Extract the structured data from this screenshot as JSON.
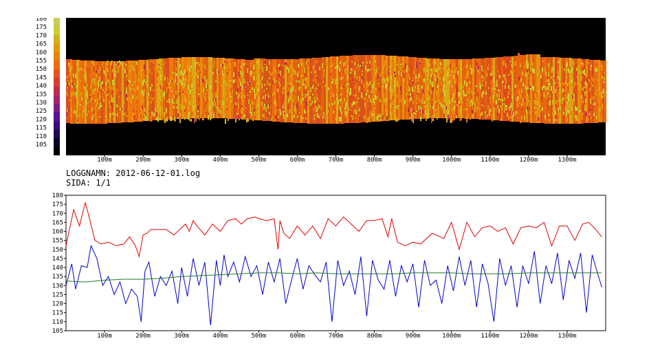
{
  "log": {
    "name_line": "LOGGNAMN: 2012-06-12-01.log",
    "page_line": "SIDA: 1/1"
  },
  "chart_data": [
    {
      "type": "heatmap",
      "title": "",
      "x_tick_labels": [
        "100m",
        "200m",
        "300m",
        "400m",
        "500m",
        "600m",
        "700m",
        "800m",
        "900m",
        "1000m",
        "1100m",
        "1200m",
        "1300m"
      ],
      "x_tick_values": [
        100,
        200,
        300,
        400,
        500,
        600,
        700,
        800,
        900,
        1000,
        1100,
        1200,
        1300
      ],
      "xlim": [
        0,
        1400
      ],
      "colorbar": {
        "labels": [
          "180",
          "175",
          "170",
          "165",
          "160",
          "155",
          "150",
          "145",
          "140",
          "135",
          "130",
          "125",
          "120",
          "115",
          "110",
          "105"
        ],
        "values": [
          180,
          175,
          170,
          165,
          160,
          155,
          150,
          145,
          140,
          135,
          130,
          125,
          120,
          115,
          110,
          105
        ],
        "colors": [
          "#c8cc55",
          "#cccc33",
          "#d4b018",
          "#e09a08",
          "#e8820a",
          "#ec6a10",
          "#e85020",
          "#d83c2e",
          "#c02c48",
          "#a02470",
          "#801a8a",
          "#5a1090",
          "#380c7a",
          "#1c0858",
          "#08042c",
          "#000000"
        ]
      }
    },
    {
      "type": "line",
      "title": "",
      "xlim": [
        0,
        1400
      ],
      "ylim": [
        105,
        180
      ],
      "y_tick_labels": [
        "180",
        "175",
        "170",
        "165",
        "160",
        "155",
        "150",
        "145",
        "140",
        "135",
        "130",
        "125",
        "120",
        "115",
        "110",
        "105"
      ],
      "y_tick_values": [
        180,
        175,
        170,
        165,
        160,
        155,
        150,
        145,
        140,
        135,
        130,
        125,
        120,
        115,
        110,
        105
      ],
      "x_tick_labels": [
        "100m",
        "200m",
        "300m",
        "400m",
        "500m",
        "600m",
        "700m",
        "800m",
        "900m",
        "1000m",
        "1100m",
        "1200m",
        "1300m"
      ],
      "x_tick_values": [
        100,
        200,
        300,
        400,
        500,
        600,
        700,
        800,
        900,
        1000,
        1100,
        1200,
        1300
      ],
      "series": [
        {
          "color": "#dd0000",
          "x": [
            0,
            20,
            35,
            50,
            60,
            75,
            90,
            110,
            130,
            150,
            165,
            180,
            190,
            200,
            210,
            220,
            240,
            260,
            280,
            300,
            310,
            320,
            330,
            340,
            360,
            380,
            400,
            420,
            440,
            455,
            470,
            490,
            500,
            520,
            540,
            550,
            555,
            565,
            580,
            600,
            620,
            640,
            660,
            680,
            700,
            720,
            740,
            760,
            780,
            800,
            820,
            835,
            845,
            860,
            880,
            900,
            920,
            950,
            980,
            1000,
            1020,
            1040,
            1060,
            1080,
            1100,
            1120,
            1140,
            1160,
            1180,
            1200,
            1220,
            1240,
            1260,
            1280,
            1300,
            1320,
            1340,
            1355,
            1370,
            1390
          ],
          "y": [
            152,
            172,
            163,
            176,
            168,
            155,
            153,
            154,
            152,
            153,
            157,
            152,
            146,
            158,
            159,
            161,
            161,
            161,
            158,
            162,
            164,
            160,
            166,
            163,
            158,
            164,
            160,
            166,
            167,
            164,
            167,
            168,
            167,
            166,
            167,
            150,
            166,
            159,
            156,
            163,
            158,
            163,
            156,
            167,
            163,
            168,
            164,
            160,
            166,
            166,
            167,
            157,
            167,
            154,
            152,
            154,
            153,
            159,
            156,
            165,
            150,
            165,
            157,
            162,
            163,
            160,
            162,
            153,
            162,
            163,
            162,
            165,
            152,
            163,
            163,
            155,
            164,
            165,
            162,
            157
          ]
        },
        {
          "color": "#0000cc",
          "x": [
            0,
            15,
            25,
            40,
            55,
            65,
            80,
            95,
            110,
            125,
            140,
            155,
            170,
            185,
            195,
            205,
            215,
            230,
            245,
            260,
            275,
            290,
            300,
            315,
            330,
            345,
            360,
            375,
            390,
            400,
            410,
            420,
            435,
            450,
            465,
            480,
            495,
            510,
            525,
            540,
            555,
            570,
            585,
            600,
            615,
            630,
            645,
            660,
            675,
            690,
            705,
            720,
            735,
            750,
            765,
            780,
            795,
            810,
            825,
            840,
            855,
            870,
            885,
            900,
            915,
            930,
            945,
            960,
            975,
            990,
            1005,
            1020,
            1035,
            1050,
            1065,
            1080,
            1095,
            1110,
            1125,
            1140,
            1155,
            1170,
            1185,
            1200,
            1215,
            1230,
            1245,
            1260,
            1275,
            1290,
            1305,
            1320,
            1335,
            1350,
            1365,
            1380,
            1390
          ],
          "y": [
            130,
            142,
            128,
            141,
            140,
            152,
            145,
            130,
            135,
            125,
            132,
            120,
            128,
            124,
            110,
            138,
            143,
            124,
            135,
            130,
            138,
            120,
            140,
            124,
            145,
            130,
            143,
            108,
            144,
            130,
            147,
            135,
            143,
            132,
            146,
            135,
            141,
            125,
            143,
            132,
            145,
            120,
            133,
            145,
            128,
            141,
            136,
            132,
            143,
            110,
            144,
            130,
            138,
            125,
            146,
            113,
            144,
            133,
            128,
            144,
            124,
            141,
            132,
            142,
            118,
            144,
            130,
            133,
            120,
            141,
            127,
            146,
            130,
            144,
            118,
            142,
            131,
            110,
            145,
            130,
            141,
            118,
            141,
            131,
            149,
            120,
            141,
            131,
            148,
            122,
            144,
            134,
            148,
            115,
            147,
            136,
            129
          ]
        },
        {
          "color": "#227722",
          "x": [
            0,
            50,
            100,
            150,
            200,
            250,
            300,
            350,
            400,
            450,
            500,
            550,
            600,
            650,
            700,
            750,
            800,
            850,
            900,
            950,
            1000,
            1050,
            1100,
            1150,
            1200,
            1250,
            1300,
            1350,
            1390
          ],
          "y": [
            132.5,
            132,
            133,
            133.5,
            133.5,
            134,
            135,
            135.5,
            136,
            136.5,
            137,
            137,
            136.5,
            137,
            136.5,
            136.5,
            136.5,
            136.5,
            137,
            137,
            137,
            136.5,
            136.5,
            136.5,
            137,
            137,
            137,
            137,
            137
          ]
        }
      ]
    }
  ]
}
